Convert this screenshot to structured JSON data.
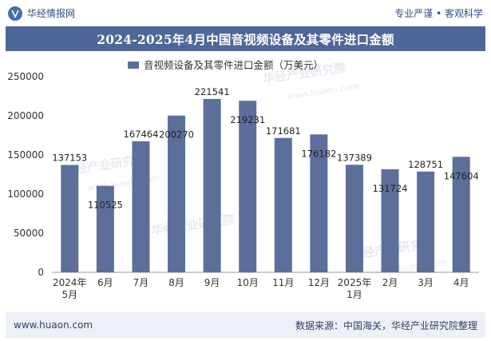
{
  "header": {
    "brand_name": "华经情报网",
    "slogan": "专业严谨 • 客观科学",
    "logo_icon": "hj-logo-icon"
  },
  "title": "2024-2025年4月中国音视频设备及其零件进口金额",
  "footer": {
    "url": "www.huaon.com",
    "source": "数据来源：中国海关，华经产业研究院整理"
  },
  "watermark": "华经产业研究院",
  "watermark_url": "www.huaon.com",
  "colors": {
    "bar": "#5c6f9b",
    "title_band": "#4e6798",
    "footer_band": "#edf1f7"
  },
  "chart_data": {
    "type": "bar",
    "legend": "音视频设备及其零件进口金额（万美元）",
    "categories": [
      [
        "2024年",
        "5月"
      ],
      [
        "6月"
      ],
      [
        "7月"
      ],
      [
        "8月"
      ],
      [
        "9月"
      ],
      [
        "10月"
      ],
      [
        "11月"
      ],
      [
        "12月"
      ],
      [
        "2025年",
        "1月"
      ],
      [
        "2月"
      ],
      [
        "3月"
      ],
      [
        "4月"
      ]
    ],
    "values": [
      137153,
      110525,
      167464,
      200270,
      221541,
      219231,
      171681,
      176182,
      137389,
      131724,
      128751,
      147604
    ],
    "label_pos": [
      "above",
      "inside",
      "above",
      "inside",
      "above",
      "inside",
      "above",
      "inside",
      "above",
      "inside",
      "above",
      "inside"
    ],
    "ylim": [
      0,
      250000
    ],
    "yticks": [
      0,
      50000,
      100000,
      150000,
      200000,
      250000
    ]
  }
}
